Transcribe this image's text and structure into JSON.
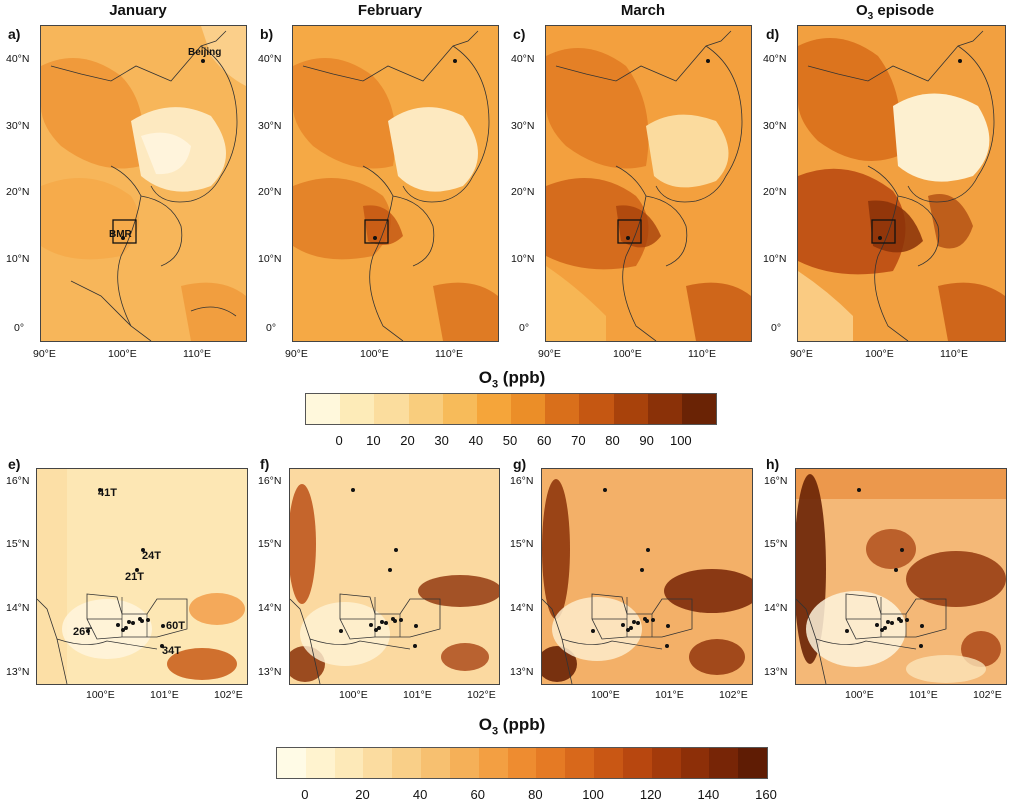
{
  "top_row": {
    "panels": [
      {
        "label": "a)",
        "title": "January"
      },
      {
        "label": "b)",
        "title": "February"
      },
      {
        "label": "c)",
        "title": "March"
      },
      {
        "label": "d)",
        "title": "O3 episode"
      }
    ],
    "lat_ticks": [
      "40°N",
      "30°N",
      "20°N",
      "10°N",
      "0°"
    ],
    "lon_ticks": [
      "90°E",
      "100°E",
      "110°E"
    ],
    "place_labels": {
      "beijing": "Beijing",
      "bmr": "BMR"
    }
  },
  "top_colorbar": {
    "title": "O3 (ppb)",
    "title_main": "O",
    "title_sub": "3",
    "title_rest": " (ppb)",
    "ticks": [
      "0",
      "10",
      "20",
      "30",
      "40",
      "50",
      "60",
      "70",
      "80",
      "90",
      "100"
    ],
    "colors": [
      "#fff8dc",
      "#fdebb8",
      "#fbdd9e",
      "#f9cd7d",
      "#f7bb5a",
      "#f5a53a",
      "#eb8e28",
      "#d96f1b",
      "#c55712",
      "#a8420b",
      "#8a3108",
      "#6a2305"
    ]
  },
  "bottom_row": {
    "panels": [
      {
        "label": "e)"
      },
      {
        "label": "f)"
      },
      {
        "label": "g)"
      },
      {
        "label": "h)"
      }
    ],
    "lat_ticks": [
      "16°N",
      "15°N",
      "14°N",
      "13°N"
    ],
    "lon_ticks": [
      "100°E",
      "101°E",
      "102°E"
    ],
    "site_labels": [
      "41T",
      "24T",
      "21T",
      "60T",
      "26T",
      "34T"
    ]
  },
  "bottom_colorbar": {
    "title_main": "O",
    "title_sub": "3",
    "title_rest": " (ppb)",
    "ticks": [
      "0",
      "20",
      "40",
      "60",
      "80",
      "100",
      "120",
      "140",
      "160"
    ],
    "colors": [
      "#fffbe6",
      "#fff3cf",
      "#fde9b8",
      "#fbdca0",
      "#f9cf88",
      "#f7c070",
      "#f5b058",
      "#f39f42",
      "#ee8c30",
      "#e57a24",
      "#d8681b",
      "#c95714",
      "#b8470f",
      "#a33a0b",
      "#8d2f08",
      "#772506",
      "#5f1c04"
    ]
  }
}
